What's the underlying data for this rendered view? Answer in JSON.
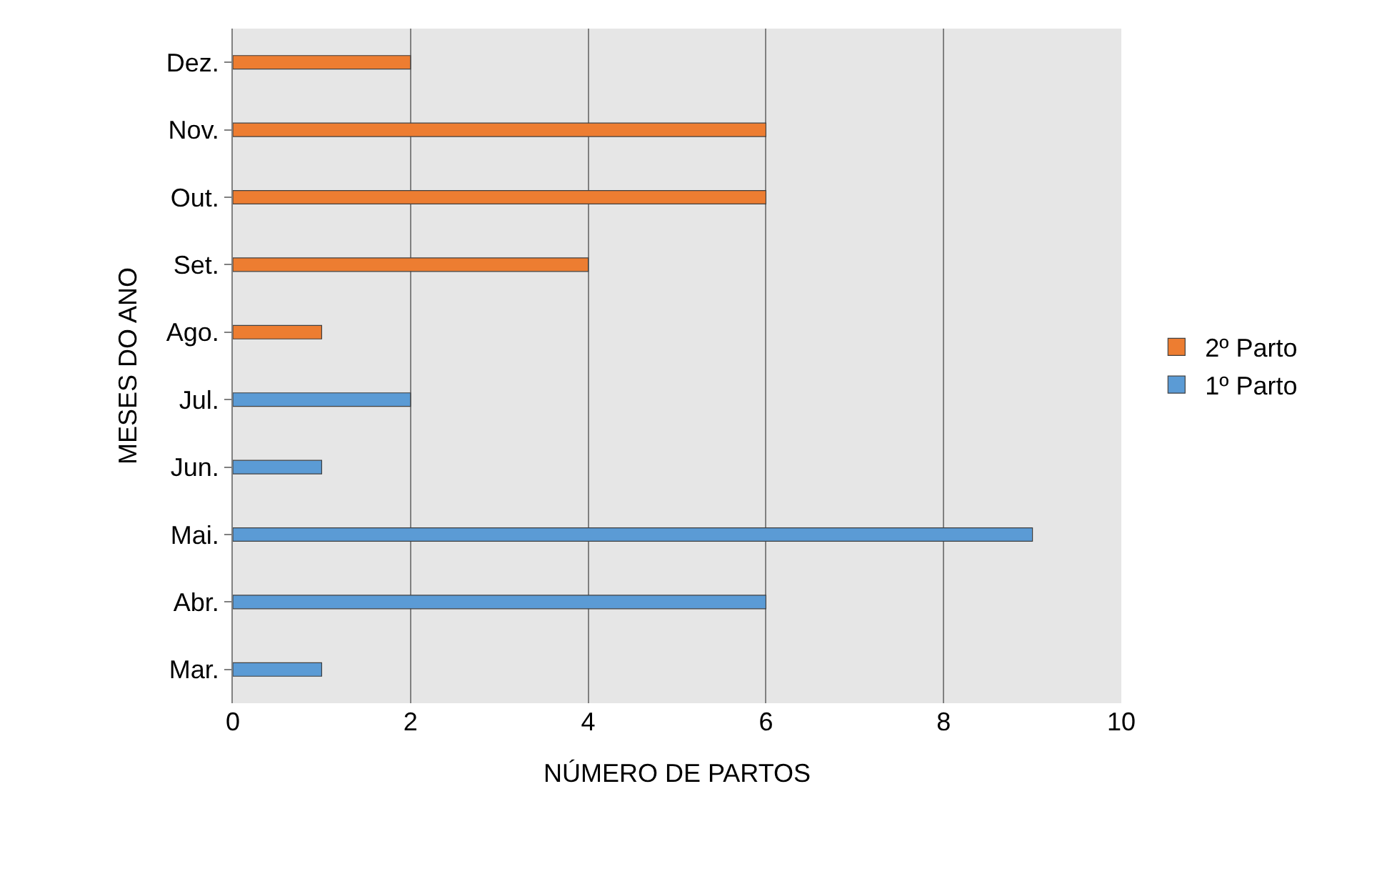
{
  "chart_data": {
    "type": "bar",
    "orientation": "horizontal",
    "stacked": true,
    "categories": [
      "Dez.",
      "Nov.",
      "Out.",
      "Set.",
      "Ago.",
      "Jul.",
      "Jun.",
      "Mai.",
      "Abr.",
      "Mar."
    ],
    "series": [
      {
        "name": "1º Parto",
        "color": "#5b9bd5",
        "values": [
          null,
          null,
          null,
          null,
          null,
          2,
          1,
          9,
          6,
          1
        ]
      },
      {
        "name": "2º Parto",
        "color": "#ed7d31",
        "values": [
          2,
          6,
          6,
          4,
          1,
          null,
          null,
          null,
          null,
          null
        ]
      }
    ],
    "xlabel": "NÚMERO DE PARTOS",
    "ylabel": "MESES DO ANO",
    "xlim": [
      0,
      10
    ],
    "xticks": [
      0,
      2,
      4,
      6,
      8,
      10
    ],
    "grid": "x",
    "legend": "right"
  }
}
